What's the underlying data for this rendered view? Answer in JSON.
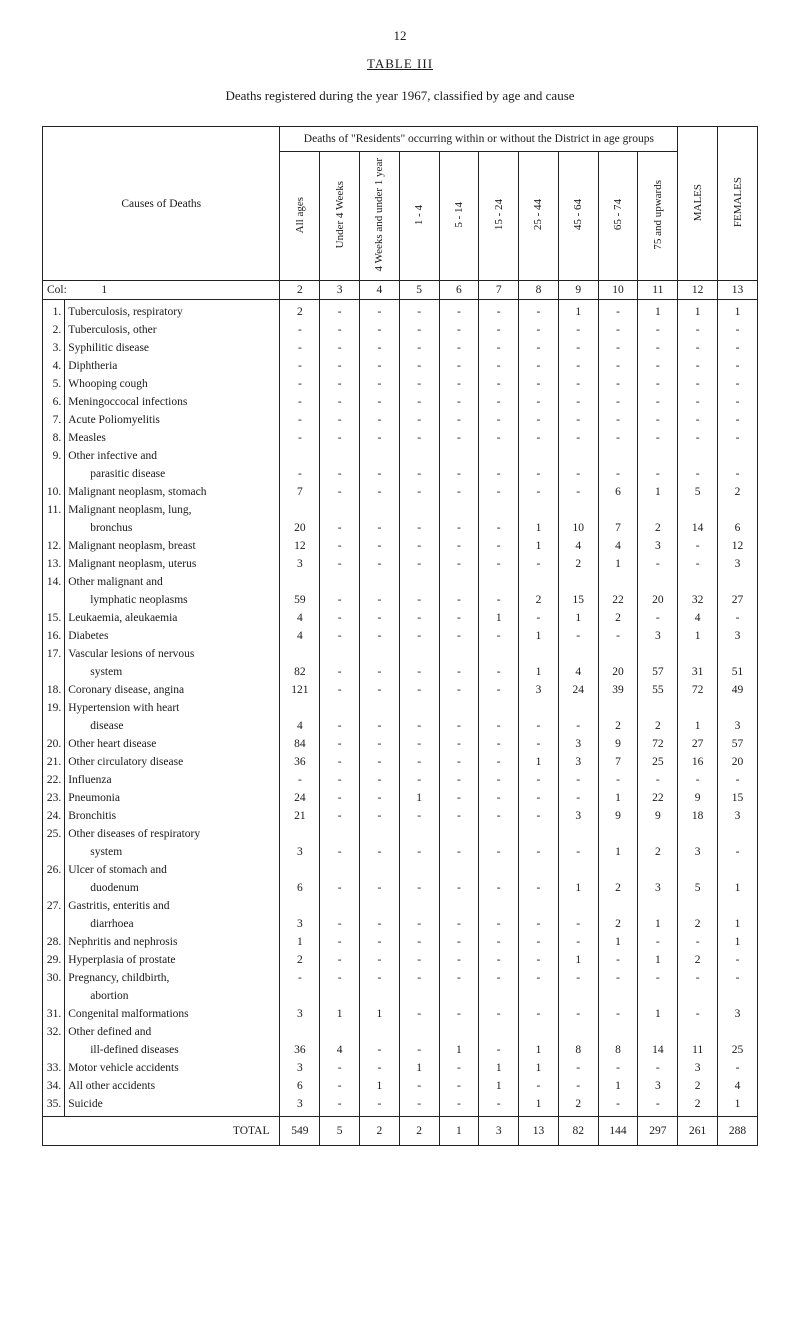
{
  "page_number": "12",
  "table_title": "TABLE III",
  "caption": "Deaths registered during the year 1967, classified by age and cause",
  "header_group": "Deaths of \"Residents\" occurring within or without the District in age groups",
  "header_causes": "Causes of Deaths",
  "header_col_label": "Col:",
  "age_headers": [
    "All ages",
    "Under 4 Weeks",
    "4 Weeks and under 1 year",
    "1 - 4",
    "5 - 14",
    "15 - 24",
    "25 - 44",
    "45 - 64",
    "65 - 74",
    "75 and upwards",
    "MALES",
    "FEMALES"
  ],
  "col_numbers": [
    "1",
    "2",
    "3",
    "4",
    "5",
    "6",
    "7",
    "8",
    "9",
    "10",
    "11",
    "12",
    "13"
  ],
  "rows": [
    {
      "n": "1.",
      "label": "Tuberculosis, respiratory",
      "v": [
        "2",
        "-",
        "-",
        "-",
        "-",
        "-",
        "-",
        "1",
        "-",
        "1",
        "1",
        "1"
      ]
    },
    {
      "n": "2.",
      "label": "Tuberculosis, other",
      "v": [
        "-",
        "-",
        "-",
        "-",
        "-",
        "-",
        "-",
        "-",
        "-",
        "-",
        "-",
        "-"
      ]
    },
    {
      "n": "3.",
      "label": "Syphilitic disease",
      "v": [
        "-",
        "-",
        "-",
        "-",
        "-",
        "-",
        "-",
        "-",
        "-",
        "-",
        "-",
        "-"
      ]
    },
    {
      "n": "4.",
      "label": "Diphtheria",
      "v": [
        "-",
        "-",
        "-",
        "-",
        "-",
        "-",
        "-",
        "-",
        "-",
        "-",
        "-",
        "-"
      ]
    },
    {
      "n": "5.",
      "label": "Whooping cough",
      "v": [
        "-",
        "-",
        "-",
        "-",
        "-",
        "-",
        "-",
        "-",
        "-",
        "-",
        "-",
        "-"
      ]
    },
    {
      "n": "6.",
      "label": "Meningoccocal infections",
      "v": [
        "-",
        "-",
        "-",
        "-",
        "-",
        "-",
        "-",
        "-",
        "-",
        "-",
        "-",
        "-"
      ]
    },
    {
      "n": "7.",
      "label": "Acute Poliomyelitis",
      "v": [
        "-",
        "-",
        "-",
        "-",
        "-",
        "-",
        "-",
        "-",
        "-",
        "-",
        "-",
        "-"
      ]
    },
    {
      "n": "8.",
      "label": "Measles",
      "v": [
        "-",
        "-",
        "-",
        "-",
        "-",
        "-",
        "-",
        "-",
        "-",
        "-",
        "-",
        "-"
      ]
    },
    {
      "n": "9.",
      "label": "Other infective and",
      "v": [
        "",
        "",
        "",
        "",
        "",
        "",
        "",
        "",
        "",
        "",
        "",
        ""
      ]
    },
    {
      "n": "",
      "label": "parasitic disease",
      "indent": true,
      "v": [
        "-",
        "-",
        "-",
        "-",
        "-",
        "-",
        "-",
        "-",
        "-",
        "-",
        "-",
        "-"
      ]
    },
    {
      "n": "10.",
      "label": "Malignant neoplasm, stomach",
      "v": [
        "7",
        "-",
        "-",
        "-",
        "-",
        "-",
        "-",
        "-",
        "6",
        "1",
        "5",
        "2"
      ]
    },
    {
      "n": "11.",
      "label": "Malignant neoplasm, lung,",
      "v": [
        "",
        "",
        "",
        "",
        "",
        "",
        "",
        "",
        "",
        "",
        "",
        ""
      ]
    },
    {
      "n": "",
      "label": "bronchus",
      "indent": true,
      "v": [
        "20",
        "-",
        "-",
        "-",
        "-",
        "-",
        "1",
        "10",
        "7",
        "2",
        "14",
        "6"
      ]
    },
    {
      "n": "12.",
      "label": "Malignant neoplasm, breast",
      "v": [
        "12",
        "-",
        "-",
        "-",
        "-",
        "-",
        "1",
        "4",
        "4",
        "3",
        "-",
        "12"
      ]
    },
    {
      "n": "13.",
      "label": "Malignant neoplasm, uterus",
      "v": [
        "3",
        "-",
        "-",
        "-",
        "-",
        "-",
        "-",
        "2",
        "1",
        "-",
        "-",
        "3"
      ]
    },
    {
      "n": "14.",
      "label": "Other malignant and",
      "v": [
        "",
        "",
        "",
        "",
        "",
        "",
        "",
        "",
        "",
        "",
        "",
        ""
      ]
    },
    {
      "n": "",
      "label": "lymphatic neoplasms",
      "indent": true,
      "v": [
        "59",
        "-",
        "-",
        "-",
        "-",
        "-",
        "2",
        "15",
        "22",
        "20",
        "32",
        "27"
      ]
    },
    {
      "n": "15.",
      "label": "Leukaemia, aleukaemia",
      "v": [
        "4",
        "-",
        "-",
        "-",
        "-",
        "1",
        "-",
        "1",
        "2",
        "-",
        "4",
        "-"
      ]
    },
    {
      "n": "16.",
      "label": "Diabetes",
      "v": [
        "4",
        "-",
        "-",
        "-",
        "-",
        "-",
        "1",
        "-",
        "-",
        "3",
        "1",
        "3"
      ]
    },
    {
      "n": "17.",
      "label": "Vascular lesions of nervous",
      "v": [
        "",
        "",
        "",
        "",
        "",
        "",
        "",
        "",
        "",
        "",
        "",
        ""
      ]
    },
    {
      "n": "",
      "label": "system",
      "indent": true,
      "v": [
        "82",
        "-",
        "-",
        "-",
        "-",
        "-",
        "1",
        "4",
        "20",
        "57",
        "31",
        "51"
      ]
    },
    {
      "n": "18.",
      "label": "Coronary disease, angina",
      "v": [
        "121",
        "-",
        "-",
        "-",
        "-",
        "-",
        "3",
        "24",
        "39",
        "55",
        "72",
        "49"
      ]
    },
    {
      "n": "19.",
      "label": "Hypertension with heart",
      "v": [
        "",
        "",
        "",
        "",
        "",
        "",
        "",
        "",
        "",
        "",
        "",
        ""
      ]
    },
    {
      "n": "",
      "label": "disease",
      "indent": true,
      "v": [
        "4",
        "-",
        "-",
        "-",
        "-",
        "-",
        "-",
        "-",
        "2",
        "2",
        "1",
        "3"
      ]
    },
    {
      "n": "20.",
      "label": "Other heart disease",
      "v": [
        "84",
        "-",
        "-",
        "-",
        "-",
        "-",
        "-",
        "3",
        "9",
        "72",
        "27",
        "57"
      ]
    },
    {
      "n": "21.",
      "label": "Other circulatory disease",
      "v": [
        "36",
        "-",
        "-",
        "-",
        "-",
        "-",
        "1",
        "3",
        "7",
        "25",
        "16",
        "20"
      ]
    },
    {
      "n": "22.",
      "label": "Influenza",
      "v": [
        "-",
        "-",
        "-",
        "-",
        "-",
        "-",
        "-",
        "-",
        "-",
        "-",
        "-",
        "-"
      ]
    },
    {
      "n": "23.",
      "label": "Pneumonia",
      "v": [
        "24",
        "-",
        "-",
        "1",
        "-",
        "-",
        "-",
        "-",
        "1",
        "22",
        "9",
        "15"
      ]
    },
    {
      "n": "24.",
      "label": "Bronchitis",
      "v": [
        "21",
        "-",
        "-",
        "-",
        "-",
        "-",
        "-",
        "3",
        "9",
        "9",
        "18",
        "3"
      ]
    },
    {
      "n": "25.",
      "label": "Other diseases of respiratory",
      "v": [
        "",
        "",
        "",
        "",
        "",
        "",
        "",
        "",
        "",
        "",
        "",
        ""
      ]
    },
    {
      "n": "",
      "label": "system",
      "indent": true,
      "v": [
        "3",
        "-",
        "-",
        "-",
        "-",
        "-",
        "-",
        "-",
        "1",
        "2",
        "3",
        "-"
      ]
    },
    {
      "n": "26.",
      "label": "Ulcer of stomach and",
      "v": [
        "",
        "",
        "",
        "",
        "",
        "",
        "",
        "",
        "",
        "",
        "",
        ""
      ]
    },
    {
      "n": "",
      "label": "duodenum",
      "indent": true,
      "v": [
        "6",
        "-",
        "-",
        "-",
        "-",
        "-",
        "-",
        "1",
        "2",
        "3",
        "5",
        "1"
      ]
    },
    {
      "n": "27.",
      "label": "Gastritis, enteritis and",
      "v": [
        "",
        "",
        "",
        "",
        "",
        "",
        "",
        "",
        "",
        "",
        "",
        ""
      ]
    },
    {
      "n": "",
      "label": "diarrhoea",
      "indent": true,
      "v": [
        "3",
        "-",
        "-",
        "-",
        "-",
        "-",
        "-",
        "-",
        "2",
        "1",
        "2",
        "1"
      ]
    },
    {
      "n": "28.",
      "label": "Nephritis and nephrosis",
      "v": [
        "1",
        "-",
        "-",
        "-",
        "-",
        "-",
        "-",
        "-",
        "1",
        "-",
        "-",
        "1"
      ]
    },
    {
      "n": "29.",
      "label": "Hyperplasia of prostate",
      "v": [
        "2",
        "-",
        "-",
        "-",
        "-",
        "-",
        "-",
        "1",
        "-",
        "1",
        "2",
        "-"
      ]
    },
    {
      "n": "30.",
      "label": "Pregnancy, childbirth,",
      "v": [
        "-",
        "-",
        "-",
        "-",
        "-",
        "-",
        "-",
        "-",
        "-",
        "-",
        "-",
        "-"
      ]
    },
    {
      "n": "",
      "label": "abortion",
      "indent": true,
      "v": [
        "",
        "",
        "",
        "",
        "",
        "",
        "",
        "",
        "",
        "",
        "",
        ""
      ]
    },
    {
      "n": "31.",
      "label": "Congenital malformations",
      "v": [
        "3",
        "1",
        "1",
        "-",
        "-",
        "-",
        "-",
        "-",
        "-",
        "1",
        "-",
        "3"
      ]
    },
    {
      "n": "32.",
      "label": "Other defined and",
      "v": [
        "",
        "",
        "",
        "",
        "",
        "",
        "",
        "",
        "",
        "",
        "",
        ""
      ]
    },
    {
      "n": "",
      "label": "ill-defined diseases",
      "indent": true,
      "v": [
        "36",
        "4",
        "-",
        "-",
        "1",
        "-",
        "1",
        "8",
        "8",
        "14",
        "11",
        "25"
      ]
    },
    {
      "n": "33.",
      "label": "Motor vehicle accidents",
      "v": [
        "3",
        "-",
        "-",
        "1",
        "-",
        "1",
        "1",
        "-",
        "-",
        "-",
        "3",
        "-"
      ]
    },
    {
      "n": "34.",
      "label": "All other accidents",
      "v": [
        "6",
        "-",
        "1",
        "-",
        "-",
        "1",
        "-",
        "-",
        "1",
        "3",
        "2",
        "4"
      ]
    },
    {
      "n": "35.",
      "label": "Suicide",
      "v": [
        "3",
        "-",
        "-",
        "-",
        "-",
        "-",
        "1",
        "2",
        "-",
        "-",
        "2",
        "1"
      ]
    }
  ],
  "total_label": "TOTAL",
  "total_values": [
    "549",
    "5",
    "2",
    "2",
    "1",
    "3",
    "13",
    "82",
    "144",
    "297",
    "261",
    "288"
  ]
}
